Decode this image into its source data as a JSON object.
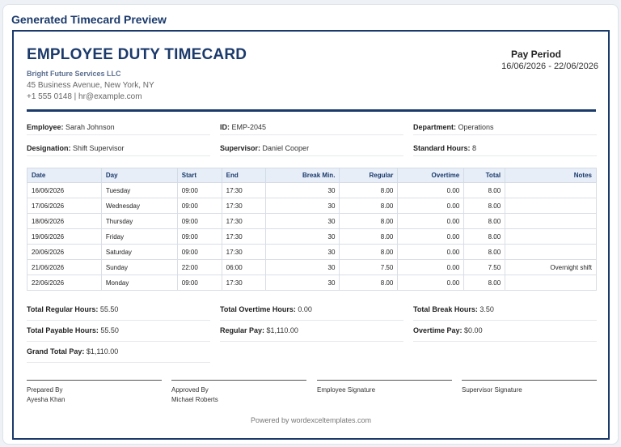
{
  "panel_title": "Generated Timecard Preview",
  "doc": {
    "title": "EMPLOYEE DUTY TIMECARD",
    "company": "Bright Future Services LLC",
    "address": "45 Business Avenue, New York, NY",
    "contact": "+1 555 0148 | hr@example.com",
    "period_label": "Pay Period",
    "period_dates": "16/06/2026 - 22/06/2026"
  },
  "fields": {
    "employee_label": "Employee:",
    "employee": "Sarah Johnson",
    "id_label": "ID:",
    "id": "EMP-2045",
    "department_label": "Department:",
    "department": "Operations",
    "designation_label": "Designation:",
    "designation": "Shift Supervisor",
    "supervisor_label": "Supervisor:",
    "supervisor": "Daniel Cooper",
    "std_hours_label": "Standard Hours:",
    "std_hours": "8"
  },
  "table": {
    "headers": [
      "Date",
      "Day",
      "Start",
      "End",
      "Break Min.",
      "Regular",
      "Overtime",
      "Total",
      "Notes"
    ],
    "rows": [
      [
        "16/06/2026",
        "Tuesday",
        "09:00",
        "17:30",
        "30",
        "8.00",
        "0.00",
        "8.00",
        ""
      ],
      [
        "17/06/2026",
        "Wednesday",
        "09:00",
        "17:30",
        "30",
        "8.00",
        "0.00",
        "8.00",
        ""
      ],
      [
        "18/06/2026",
        "Thursday",
        "09:00",
        "17:30",
        "30",
        "8.00",
        "0.00",
        "8.00",
        ""
      ],
      [
        "19/06/2026",
        "Friday",
        "09:00",
        "17:30",
        "30",
        "8.00",
        "0.00",
        "8.00",
        ""
      ],
      [
        "20/06/2026",
        "Saturday",
        "09:00",
        "17:30",
        "30",
        "8.00",
        "0.00",
        "8.00",
        ""
      ],
      [
        "21/06/2026",
        "Sunday",
        "22:00",
        "06:00",
        "30",
        "7.50",
        "0.00",
        "7.50",
        "Overnight shift"
      ],
      [
        "22/06/2026",
        "Monday",
        "09:00",
        "17:30",
        "30",
        "8.00",
        "0.00",
        "8.00",
        ""
      ]
    ]
  },
  "summary": {
    "total_regular_label": "Total Regular Hours:",
    "total_regular": "55.50",
    "total_overtime_label": "Total Overtime Hours:",
    "total_overtime": "0.00",
    "total_break_label": "Total Break Hours:",
    "total_break": "3.50",
    "total_payable_label": "Total Payable Hours:",
    "total_payable": "55.50",
    "regular_pay_label": "Regular Pay:",
    "regular_pay": "$1,110.00",
    "overtime_pay_label": "Overtime Pay:",
    "overtime_pay": "$0.00",
    "grand_total_label": "Grand Total Pay:",
    "grand_total": "$1,110.00"
  },
  "signatures": {
    "prepared_label": "Prepared By",
    "prepared_name": "Ayesha Khan",
    "approved_label": "Approved By",
    "approved_name": "Michael Roberts",
    "employee_label": "Employee Signature",
    "supervisor_label": "Supervisor Signature"
  },
  "footer": "Powered by wordexceltemplates.com"
}
